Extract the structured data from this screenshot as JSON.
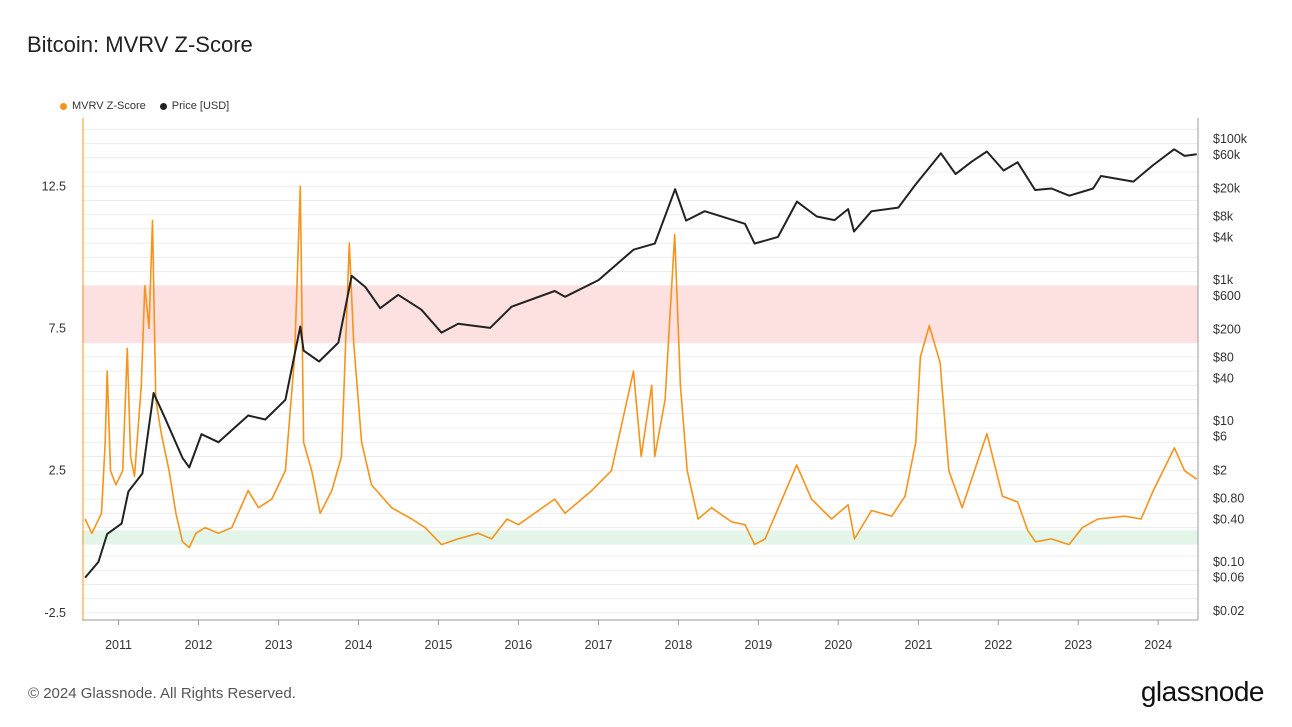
{
  "title": "Bitcoin: MVRV Z-Score",
  "footer": "© 2024 Glassnode. All Rights Reserved.",
  "brand": "glassnode",
  "colors": {
    "zscore": "#f7931a",
    "price": "#222222",
    "red_band": "#fde0e0",
    "green_band": "#e3f5e8"
  },
  "legend": [
    {
      "label": "MVRV Z-Score",
      "color": "#f7931a"
    },
    {
      "label": "Price [USD]",
      "color": "#222222"
    }
  ],
  "chart_data": {
    "type": "line",
    "x_ticks": [
      "2011",
      "2012",
      "2013",
      "2014",
      "2015",
      "2016",
      "2017",
      "2018",
      "2019",
      "2020",
      "2021",
      "2022",
      "2023",
      "2024"
    ],
    "y_left_ticks": [
      "12.5",
      "7.5",
      "2.5",
      "-2.5"
    ],
    "y_left_range": [
      -2.5,
      14.5
    ],
    "y_right_ticks": [
      "$100k",
      "$60k",
      "$20k",
      "$8k",
      "$4k",
      "$1k",
      "$600",
      "$200",
      "$80",
      "$40",
      "$10",
      "$6",
      "$2",
      "$0.80",
      "$0.40",
      "$0.10",
      "$0.06",
      "$0.02"
    ],
    "y_right_range": [
      0.02,
      200000
    ],
    "bands": [
      {
        "name": "overvalued",
        "from": 7.0,
        "to": 9.0,
        "color": "#fde0e0"
      },
      {
        "name": "undervalued",
        "from": -0.1,
        "to": 0.4,
        "color": "#e3f5e8"
      }
    ],
    "series": [
      {
        "name": "MVRV Z-Score",
        "axis": "left",
        "points": [
          [
            "2010-08-01",
            0.8
          ],
          [
            "2010-09-01",
            0.3
          ],
          [
            "2010-10-15",
            1.0
          ],
          [
            "2010-11-01",
            3.5
          ],
          [
            "2010-11-10",
            6.0
          ],
          [
            "2010-11-25",
            2.5
          ],
          [
            "2010-12-20",
            2.0
          ],
          [
            "2011-01-20",
            2.5
          ],
          [
            "2011-02-10",
            6.8
          ],
          [
            "2011-02-25",
            3.0
          ],
          [
            "2011-03-15",
            2.3
          ],
          [
            "2011-04-15",
            5.5
          ],
          [
            "2011-05-01",
            9.0
          ],
          [
            "2011-05-20",
            7.5
          ],
          [
            "2011-06-05",
            11.3
          ],
          [
            "2011-06-20",
            5.0
          ],
          [
            "2011-07-15",
            3.8
          ],
          [
            "2011-08-20",
            2.5
          ],
          [
            "2011-09-20",
            1.0
          ],
          [
            "2011-10-20",
            0.0
          ],
          [
            "2011-11-20",
            -0.2
          ],
          [
            "2011-12-20",
            0.3
          ],
          [
            "2012-02-01",
            0.5
          ],
          [
            "2012-04-01",
            0.3
          ],
          [
            "2012-06-01",
            0.5
          ],
          [
            "2012-08-15",
            1.8
          ],
          [
            "2012-10-01",
            1.2
          ],
          [
            "2012-12-01",
            1.5
          ],
          [
            "2013-02-01",
            2.5
          ],
          [
            "2013-03-15",
            6.5
          ],
          [
            "2013-04-10",
            12.5
          ],
          [
            "2013-04-25",
            3.5
          ],
          [
            "2013-06-01",
            2.5
          ],
          [
            "2013-07-10",
            1.0
          ],
          [
            "2013-09-01",
            1.8
          ],
          [
            "2013-10-15",
            3.0
          ],
          [
            "2013-11-20",
            10.5
          ],
          [
            "2013-12-10",
            7.0
          ],
          [
            "2014-01-15",
            3.5
          ],
          [
            "2014-03-01",
            2.0
          ],
          [
            "2014-06-01",
            1.2
          ],
          [
            "2014-09-01",
            0.8
          ],
          [
            "2014-11-01",
            0.5
          ],
          [
            "2015-01-15",
            -0.1
          ],
          [
            "2015-04-01",
            0.1
          ],
          [
            "2015-07-01",
            0.3
          ],
          [
            "2015-09-01",
            0.1
          ],
          [
            "2015-11-10",
            0.8
          ],
          [
            "2016-01-01",
            0.6
          ],
          [
            "2016-06-15",
            1.5
          ],
          [
            "2016-08-01",
            1.0
          ],
          [
            "2016-12-01",
            1.8
          ],
          [
            "2017-03-01",
            2.5
          ],
          [
            "2017-06-10",
            6.0
          ],
          [
            "2017-07-15",
            3.0
          ],
          [
            "2017-09-01",
            5.5
          ],
          [
            "2017-09-15",
            3.0
          ],
          [
            "2017-11-01",
            5.0
          ],
          [
            "2017-12-15",
            10.8
          ],
          [
            "2018-01-10",
            5.5
          ],
          [
            "2018-02-10",
            2.5
          ],
          [
            "2018-04-01",
            0.8
          ],
          [
            "2018-06-01",
            1.2
          ],
          [
            "2018-09-01",
            0.7
          ],
          [
            "2018-11-01",
            0.6
          ],
          [
            "2018-12-15",
            -0.1
          ],
          [
            "2019-02-01",
            0.1
          ],
          [
            "2019-06-25",
            2.7
          ],
          [
            "2019-09-01",
            1.5
          ],
          [
            "2019-12-01",
            0.8
          ],
          [
            "2020-02-15",
            1.3
          ],
          [
            "2020-03-15",
            0.1
          ],
          [
            "2020-06-01",
            1.1
          ],
          [
            "2020-09-01",
            0.9
          ],
          [
            "2020-11-01",
            1.6
          ],
          [
            "2020-12-20",
            3.5
          ],
          [
            "2021-01-10",
            6.5
          ],
          [
            "2021-02-20",
            7.6
          ],
          [
            "2021-04-10",
            6.3
          ],
          [
            "2021-05-20",
            2.5
          ],
          [
            "2021-07-20",
            1.2
          ],
          [
            "2021-09-01",
            2.2
          ],
          [
            "2021-11-10",
            3.8
          ],
          [
            "2022-01-20",
            1.6
          ],
          [
            "2022-03-30",
            1.4
          ],
          [
            "2022-05-15",
            0.4
          ],
          [
            "2022-06-20",
            0.0
          ],
          [
            "2022-09-01",
            0.1
          ],
          [
            "2022-11-20",
            -0.1
          ],
          [
            "2023-01-20",
            0.5
          ],
          [
            "2023-04-01",
            0.8
          ],
          [
            "2023-08-01",
            0.9
          ],
          [
            "2023-10-15",
            0.8
          ],
          [
            "2023-12-10",
            1.8
          ],
          [
            "2024-03-15",
            3.3
          ],
          [
            "2024-05-01",
            2.5
          ],
          [
            "2024-06-25",
            2.2
          ]
        ]
      },
      {
        "name": "Price [USD]",
        "axis": "right",
        "points": [
          [
            "2010-08-01",
            0.06
          ],
          [
            "2010-10-01",
            0.1
          ],
          [
            "2010-11-10",
            0.25
          ],
          [
            "2011-01-15",
            0.35
          ],
          [
            "2011-02-15",
            1.0
          ],
          [
            "2011-04-20",
            1.8
          ],
          [
            "2011-06-10",
            25
          ],
          [
            "2011-08-01",
            11
          ],
          [
            "2011-10-20",
            3.0
          ],
          [
            "2011-11-20",
            2.2
          ],
          [
            "2012-01-15",
            6.5
          ],
          [
            "2012-04-01",
            5
          ],
          [
            "2012-08-15",
            12
          ],
          [
            "2012-11-01",
            10.5
          ],
          [
            "2013-02-01",
            20
          ],
          [
            "2013-04-10",
            220
          ],
          [
            "2013-04-25",
            100
          ],
          [
            "2013-07-05",
            70
          ],
          [
            "2013-10-01",
            130
          ],
          [
            "2013-12-01",
            1150
          ],
          [
            "2014-02-01",
            800
          ],
          [
            "2014-04-10",
            400
          ],
          [
            "2014-07-01",
            620
          ],
          [
            "2014-10-15",
            380
          ],
          [
            "2015-01-15",
            180
          ],
          [
            "2015-04-01",
            240
          ],
          [
            "2015-08-25",
            210
          ],
          [
            "2015-12-01",
            420
          ],
          [
            "2016-06-15",
            700
          ],
          [
            "2016-08-01",
            580
          ],
          [
            "2017-01-01",
            1000
          ],
          [
            "2017-06-10",
            2700
          ],
          [
            "2017-09-15",
            3300
          ],
          [
            "2017-12-17",
            19500
          ],
          [
            "2018-02-05",
            7000
          ],
          [
            "2018-05-01",
            9500
          ],
          [
            "2018-11-01",
            6300
          ],
          [
            "2018-12-15",
            3300
          ],
          [
            "2019-04-01",
            4100
          ],
          [
            "2019-06-26",
            13000
          ],
          [
            "2019-09-25",
            8000
          ],
          [
            "2019-12-15",
            7100
          ],
          [
            "2020-02-15",
            10200
          ],
          [
            "2020-03-13",
            4900
          ],
          [
            "2020-06-01",
            9500
          ],
          [
            "2020-10-01",
            10700
          ],
          [
            "2020-12-20",
            23000
          ],
          [
            "2021-04-14",
            63000
          ],
          [
            "2021-06-20",
            32000
          ],
          [
            "2021-09-01",
            48000
          ],
          [
            "2021-11-10",
            67000
          ],
          [
            "2022-01-25",
            36000
          ],
          [
            "2022-03-30",
            47000
          ],
          [
            "2022-06-18",
            19000
          ],
          [
            "2022-09-01",
            20000
          ],
          [
            "2022-11-21",
            15800
          ],
          [
            "2023-03-10",
            20000
          ],
          [
            "2023-04-15",
            30000
          ],
          [
            "2023-09-10",
            25000
          ],
          [
            "2023-12-10",
            43000
          ],
          [
            "2024-03-14",
            72000
          ],
          [
            "2024-05-01",
            58000
          ],
          [
            "2024-06-25",
            61000
          ]
        ]
      }
    ]
  }
}
